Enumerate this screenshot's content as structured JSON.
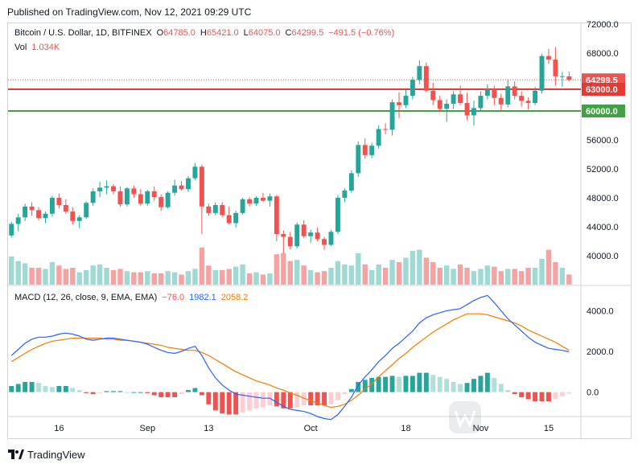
{
  "header": {
    "published": "Published on TradingView.com, Nov 12, 2021 09:29 UTC"
  },
  "legend": {
    "symbol": "Bitcoin / U.S. Dollar, 1D, BITFINEX",
    "o_label": "O",
    "o": "64785.0",
    "h_label": "H",
    "h": "65421.0",
    "l_label": "L",
    "l": "64075.0",
    "c_label": "C",
    "c": "64299.5",
    "change": "−491.5 (−0.76%)",
    "vol_label": "Vol",
    "vol": "1.034K"
  },
  "macd_legend": {
    "title": "MACD (12, 26, close, 9, EMA, EMA)",
    "hist": "−76.0",
    "macd": "1982.1",
    "signal": "2058.2"
  },
  "colors": {
    "up": "#26a69a",
    "down": "#ef5350",
    "vol_up": "#9fd9d3",
    "vol_down": "#f5a3a2",
    "macd": "#2962ff",
    "signal": "#f57c00",
    "hline_resist": "#e53935",
    "hline_support": "#43a047"
  },
  "chart_data": [
    {
      "type": "candlestick",
      "ylim": [
        36000,
        72000
      ],
      "y_ticks": [
        "72000.0",
        "68000.0",
        "64000.0",
        "60000.0",
        "56000.0",
        "52000.0",
        "48000.0",
        "44000.0",
        "40000.0"
      ],
      "x_ticks": [
        "16",
        "Sep",
        "13",
        "Oct",
        "18",
        "Nov",
        "15"
      ],
      "x_tick_index": [
        7,
        20,
        29,
        44,
        58,
        69,
        79
      ],
      "horizontal_lines": [
        {
          "value": 63000,
          "label": "63000.0"
        },
        {
          "value": 60000,
          "label": "60000.0"
        }
      ],
      "last_price": {
        "value": 64299.5,
        "label": "64299.5"
      },
      "candles": [
        [
          42800,
          44700,
          42500,
          44400
        ],
        [
          44400,
          45800,
          43400,
          45300
        ],
        [
          45300,
          47200,
          44800,
          46800
        ],
        [
          46800,
          47400,
          45500,
          46300
        ],
        [
          46300,
          46700,
          44900,
          45200
        ],
        [
          45200,
          46100,
          44500,
          45800
        ],
        [
          45800,
          48300,
          45400,
          48000
        ],
        [
          48000,
          48600,
          46500,
          47000
        ],
        [
          47000,
          47800,
          45800,
          46100
        ],
        [
          46100,
          46700,
          44300,
          44800
        ],
        [
          44800,
          45600,
          43800,
          45300
        ],
        [
          45300,
          47500,
          45100,
          47300
        ],
        [
          47300,
          49300,
          46900,
          48900
        ],
        [
          48900,
          50200,
          48100,
          49400
        ],
        [
          49400,
          50400,
          48500,
          49600
        ],
        [
          49600,
          49900,
          48500,
          48900
        ],
        [
          48900,
          49600,
          46800,
          47100
        ],
        [
          47100,
          49500,
          46800,
          49300
        ],
        [
          49300,
          49700,
          48000,
          48500
        ],
        [
          48500,
          49200,
          46900,
          47200
        ],
        [
          47200,
          49100,
          46900,
          48900
        ],
        [
          48900,
          49600,
          47600,
          48100
        ],
        [
          48100,
          48500,
          46200,
          46700
        ],
        [
          46700,
          48900,
          46500,
          48700
        ],
        [
          48700,
          50500,
          48300,
          49700
        ],
        [
          49700,
          50300,
          49000,
          49200
        ],
        [
          49200,
          51000,
          48800,
          50700
        ],
        [
          50700,
          52800,
          50400,
          52300
        ],
        [
          52300,
          52600,
          43000,
          46800
        ],
        [
          46800,
          47200,
          45500,
          45900
        ],
        [
          45900,
          47400,
          45600,
          47000
        ],
        [
          47000,
          47400,
          45300,
          45600
        ],
        [
          45600,
          46800,
          44300,
          44500
        ],
        [
          44500,
          46200,
          43900,
          45900
        ],
        [
          45900,
          48000,
          45700,
          47800
        ],
        [
          47800,
          48100,
          46800,
          47200
        ],
        [
          47200,
          48200,
          46900,
          48000
        ],
        [
          48000,
          48700,
          47400,
          47600
        ],
        [
          47600,
          48600,
          46800,
          48200
        ],
        [
          48200,
          48400,
          42000,
          43000
        ],
        [
          43000,
          43500,
          40300,
          42600
        ],
        [
          42600,
          43300,
          40900,
          41300
        ],
        [
          41300,
          44600,
          41000,
          44300
        ],
        [
          44300,
          44900,
          42400,
          42700
        ],
        [
          42700,
          43600,
          41800,
          43200
        ],
        [
          43200,
          43900,
          42000,
          42300
        ],
        [
          42300,
          42600,
          40800,
          41500
        ],
        [
          41500,
          43600,
          41300,
          43300
        ],
        [
          43300,
          48400,
          43000,
          48000
        ],
        [
          48000,
          49300,
          47400,
          49000
        ],
        [
          49000,
          51800,
          48700,
          51400
        ],
        [
          51400,
          55800,
          50900,
          55300
        ],
        [
          55300,
          56200,
          53400,
          53900
        ],
        [
          53900,
          55600,
          53500,
          55200
        ],
        [
          55200,
          58000,
          54800,
          57500
        ],
        [
          57500,
          58300,
          56800,
          57400
        ],
        [
          57400,
          61600,
          56600,
          61200
        ],
        [
          61200,
          62600,
          59000,
          60800
        ],
        [
          60800,
          62900,
          60400,
          62100
        ],
        [
          62100,
          64700,
          61600,
          64300
        ],
        [
          64300,
          67000,
          63700,
          66200
        ],
        [
          66200,
          66700,
          62600,
          62800
        ],
        [
          62800,
          63900,
          60800,
          61500
        ],
        [
          61500,
          62100,
          59800,
          60300
        ],
        [
          60300,
          61600,
          58500,
          61000
        ],
        [
          61000,
          62800,
          60300,
          62300
        ],
        [
          62300,
          63500,
          60800,
          61100
        ],
        [
          61100,
          62500,
          58700,
          59400
        ],
        [
          59400,
          61400,
          58000,
          60400
        ],
        [
          60400,
          62700,
          60100,
          62100
        ],
        [
          62100,
          63700,
          61600,
          63000
        ],
        [
          63000,
          63500,
          60800,
          61800
        ],
        [
          61800,
          62400,
          60000,
          60900
        ],
        [
          60900,
          64300,
          60500,
          63400
        ],
        [
          63400,
          64100,
          61600,
          62100
        ],
        [
          62100,
          62700,
          60600,
          61400
        ],
        [
          61400,
          61900,
          60200,
          61100
        ],
        [
          61100,
          63300,
          60800,
          62800
        ],
        [
          62800,
          67900,
          62400,
          67600
        ],
        [
          67600,
          68600,
          66500,
          67100
        ],
        [
          67100,
          68800,
          63500,
          64800
        ],
        [
          64800,
          65400,
          63300,
          64800
        ],
        [
          64785,
          65421,
          64075,
          64299.5
        ]
      ],
      "volume": [
        0.5,
        0.42,
        0.38,
        0.3,
        0.3,
        0.28,
        0.4,
        0.34,
        0.28,
        0.3,
        0.22,
        0.26,
        0.34,
        0.36,
        0.3,
        0.26,
        0.28,
        0.24,
        0.22,
        0.22,
        0.24,
        0.2,
        0.2,
        0.24,
        0.22,
        0.18,
        0.24,
        0.28,
        0.66,
        0.34,
        0.26,
        0.26,
        0.28,
        0.32,
        0.36,
        0.2,
        0.22,
        0.18,
        0.2,
        0.54,
        0.56,
        0.42,
        0.44,
        0.34,
        0.26,
        0.22,
        0.24,
        0.3,
        0.42,
        0.36,
        0.34,
        0.56,
        0.36,
        0.26,
        0.36,
        0.3,
        0.44,
        0.4,
        0.48,
        0.6,
        0.62,
        0.48,
        0.4,
        0.3,
        0.34,
        0.28,
        0.36,
        0.3,
        0.24,
        0.28,
        0.34,
        0.32,
        0.24,
        0.28,
        0.28,
        0.24,
        0.3,
        0.3,
        0.46,
        0.62,
        0.4,
        0.3,
        0.18
      ]
    },
    {
      "type": "macd",
      "ylim": [
        -1200,
        5200
      ],
      "y_ticks": [
        "4000.0",
        "2000.0",
        "0.0"
      ],
      "macd": [
        1800,
        2100,
        2400,
        2600,
        2700,
        2700,
        2750,
        2850,
        2900,
        2850,
        2750,
        2600,
        2550,
        2600,
        2650,
        2650,
        2600,
        2550,
        2500,
        2450,
        2350,
        2200,
        2050,
        1950,
        1900,
        2000,
        2150,
        2250,
        1800,
        1200,
        700,
        350,
        100,
        -100,
        -150,
        -200,
        -250,
        -300,
        -300,
        -500,
        -700,
        -850,
        -900,
        -950,
        -1050,
        -1200,
        -1300,
        -1350,
        -1100,
        -700,
        -250,
        350,
        750,
        1100,
        1500,
        1800,
        2150,
        2400,
        2700,
        3000,
        3400,
        3650,
        3800,
        3900,
        4000,
        4050,
        4100,
        4300,
        4500,
        4650,
        4750,
        4400,
        4000,
        3600,
        3300,
        3000,
        2700,
        2450,
        2300,
        2150,
        2100,
        2050,
        1982.1
      ],
      "signal": [
        1500,
        1700,
        1900,
        2100,
        2250,
        2400,
        2500,
        2550,
        2600,
        2650,
        2650,
        2650,
        2650,
        2650,
        2600,
        2600,
        2550,
        2550,
        2500,
        2450,
        2400,
        2350,
        2300,
        2200,
        2150,
        2100,
        2050,
        2050,
        1950,
        1800,
        1600,
        1400,
        1200,
        1000,
        850,
        700,
        550,
        450,
        350,
        200,
        100,
        -50,
        -150,
        -300,
        -400,
        -550,
        -650,
        -750,
        -700,
        -600,
        -400,
        -150,
        150,
        400,
        750,
        1050,
        1350,
        1650,
        1900,
        2200,
        2450,
        2700,
        2950,
        3150,
        3350,
        3550,
        3700,
        3850,
        3850,
        3850,
        3800,
        3700,
        3600,
        3500,
        3400,
        3250,
        3050,
        2900,
        2750,
        2600,
        2450,
        2250,
        2058.2
      ],
      "histogram": [
        300,
        400,
        500,
        500,
        450,
        300,
        250,
        300,
        300,
        200,
        100,
        -50,
        -100,
        -50,
        50,
        50,
        50,
        0,
        0,
        0,
        -50,
        -150,
        -250,
        -250,
        -250,
        -100,
        100,
        200,
        -150,
        -600,
        -900,
        -1050,
        -1100,
        -1100,
        -1000,
        -900,
        -800,
        -750,
        -650,
        -700,
        -800,
        -800,
        -750,
        -650,
        -650,
        -650,
        -650,
        -600,
        -400,
        -100,
        150,
        500,
        600,
        700,
        750,
        750,
        800,
        750,
        800,
        800,
        950,
        950,
        850,
        750,
        650,
        500,
        400,
        450,
        650,
        800,
        950,
        700,
        400,
        100,
        -100,
        -250,
        -350,
        -450,
        -450,
        -450,
        -350,
        -200,
        -76
      ]
    }
  ]
}
